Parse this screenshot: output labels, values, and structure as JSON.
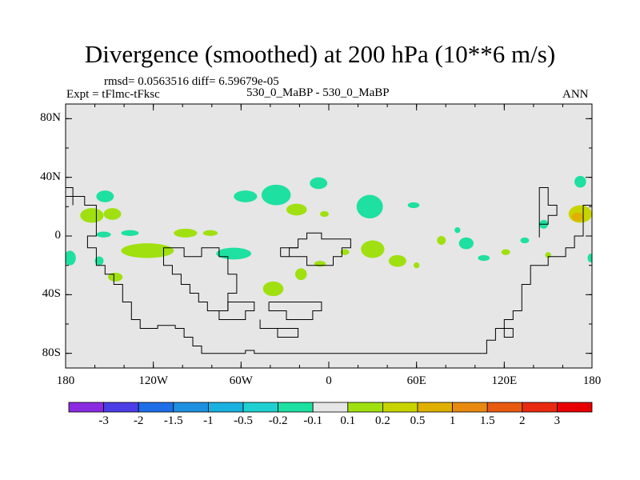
{
  "header": {
    "title": "Divergence (smoothed) at 200 hPa (10**6 m/s)",
    "stats": "rmsd= 0.0563516 diff= 6.59679e-05",
    "expt": "Expt = tFlmc-tFksc",
    "case": "530_0_MaBP - 530_0_MaBP",
    "season": "ANN"
  },
  "chart_data": {
    "type": "heatmap",
    "title": "Divergence (smoothed) at 200 hPa (10**6 m/s)",
    "xlabel": "",
    "ylabel": "",
    "xlim": [
      -180,
      180
    ],
    "ylim": [
      -90,
      90
    ],
    "x_ticks": [
      {
        "value": -180,
        "label": "180"
      },
      {
        "value": -120,
        "label": "120W"
      },
      {
        "value": -60,
        "label": "60W"
      },
      {
        "value": 0,
        "label": "0"
      },
      {
        "value": 60,
        "label": "60E"
      },
      {
        "value": 120,
        "label": "120E"
      },
      {
        "value": 180,
        "label": "180"
      }
    ],
    "y_ticks": [
      {
        "value": 80,
        "label": "80N"
      },
      {
        "value": 40,
        "label": "40N"
      },
      {
        "value": 0,
        "label": "0"
      },
      {
        "value": -40,
        "label": "40S"
      },
      {
        "value": -80,
        "label": "80S"
      }
    ],
    "colorbar": {
      "levels": [
        "-3",
        "-2",
        "-1.5",
        "-1",
        "-0.5",
        "-0.2",
        "-0.1",
        "0.1",
        "0.2",
        "0.5",
        "1",
        "1.5",
        "2",
        "3"
      ],
      "colors": [
        "#8a2be2",
        "#4b3ee6",
        "#1e6ee8",
        "#1e90e0",
        "#1ab0e0",
        "#20d0d0",
        "#1ee0a0",
        "#e6e6e6",
        "#a0e010",
        "#c8d400",
        "#e0b000",
        "#e88a10",
        "#e85a10",
        "#e82a10",
        "#e80000"
      ]
    },
    "background_color": "#e6e6e6",
    "anomaly_patches": [
      {
        "lon": -153,
        "lat": 27,
        "rlon": 6,
        "rlat": 4,
        "cat": "-0.1"
      },
      {
        "lon": -162,
        "lat": 14,
        "rlon": 8,
        "rlat": 5,
        "cat": "0.1"
      },
      {
        "lon": -148,
        "lat": 15,
        "rlon": 6,
        "rlat": 4,
        "cat": "0.1"
      },
      {
        "lon": -154,
        "lat": 1,
        "rlon": 5,
        "rlat": 2,
        "cat": "-0.1"
      },
      {
        "lon": -136,
        "lat": 2,
        "rlon": 6,
        "rlat": 2,
        "cat": "-0.1"
      },
      {
        "lon": -177,
        "lat": -15,
        "rlon": 4,
        "rlat": 5,
        "cat": "-0.1"
      },
      {
        "lon": -124,
        "lat": -10,
        "rlon": 18,
        "rlat": 5,
        "cat": "0.1"
      },
      {
        "lon": -157,
        "lat": -17,
        "rlon": 3,
        "rlat": 3,
        "cat": "-0.1"
      },
      {
        "lon": -146,
        "lat": -28,
        "rlon": 5,
        "rlat": 3,
        "cat": "0.1"
      },
      {
        "lon": -98,
        "lat": 2,
        "rlon": 8,
        "rlat": 3,
        "cat": "0.1"
      },
      {
        "lon": -81,
        "lat": 2,
        "rlon": 5,
        "rlat": 2,
        "cat": "0.1"
      },
      {
        "lon": -65,
        "lat": -12,
        "rlon": 12,
        "rlat": 4,
        "cat": "-0.1"
      },
      {
        "lon": -57,
        "lat": 27,
        "rlon": 8,
        "rlat": 4,
        "cat": "-0.1"
      },
      {
        "lon": -36,
        "lat": 28,
        "rlon": 10,
        "rlat": 7,
        "cat": "-0.1"
      },
      {
        "lon": -7,
        "lat": 36,
        "rlon": 6,
        "rlat": 4,
        "cat": "-0.1"
      },
      {
        "lon": -22,
        "lat": 18,
        "rlon": 7,
        "rlat": 4,
        "cat": "0.1"
      },
      {
        "lon": -3,
        "lat": 15,
        "rlon": 3,
        "rlat": 2,
        "cat": "0.1"
      },
      {
        "lon": -38,
        "lat": -36,
        "rlon": 7,
        "rlat": 5,
        "cat": "0.1"
      },
      {
        "lon": -19,
        "lat": -26,
        "rlon": 4,
        "rlat": 4,
        "cat": "0.1"
      },
      {
        "lon": -6,
        "lat": -19,
        "rlon": 4,
        "rlat": 2,
        "cat": "0.1"
      },
      {
        "lon": 11,
        "lat": -11,
        "rlon": 3,
        "rlat": 2,
        "cat": "0.1"
      },
      {
        "lon": 28,
        "lat": 20,
        "rlon": 9,
        "rlat": 8,
        "cat": "-0.1"
      },
      {
        "lon": 30,
        "lat": -9,
        "rlon": 8,
        "rlat": 6,
        "cat": "0.1"
      },
      {
        "lon": 47,
        "lat": -17,
        "rlon": 6,
        "rlat": 4,
        "cat": "0.1"
      },
      {
        "lon": 58,
        "lat": 21,
        "rlon": 4,
        "rlat": 2,
        "cat": "-0.1"
      },
      {
        "lon": 60,
        "lat": -20,
        "rlon": 2,
        "rlat": 2,
        "cat": "0.1"
      },
      {
        "lon": 77,
        "lat": -3,
        "rlon": 3,
        "rlat": 3,
        "cat": "0.1"
      },
      {
        "lon": 88,
        "lat": 4,
        "rlon": 2,
        "rlat": 2,
        "cat": "-0.1"
      },
      {
        "lon": 94,
        "lat": -5,
        "rlon": 5,
        "rlat": 4,
        "cat": "-0.1"
      },
      {
        "lon": 106,
        "lat": -15,
        "rlon": 4,
        "rlat": 2,
        "cat": "-0.1"
      },
      {
        "lon": 121,
        "lat": -11,
        "rlon": 3,
        "rlat": 2,
        "cat": "0.1"
      },
      {
        "lon": 134,
        "lat": -3,
        "rlon": 3,
        "rlat": 2,
        "cat": "-0.1"
      },
      {
        "lon": 147,
        "lat": 8,
        "rlon": 3,
        "rlat": 3,
        "cat": "-0.1"
      },
      {
        "lon": 150,
        "lat": -13,
        "rlon": 2,
        "rlat": 2,
        "cat": "0.1"
      },
      {
        "lon": 172,
        "lat": 37,
        "rlon": 4,
        "rlat": 4,
        "cat": "-0.1"
      },
      {
        "lon": 172,
        "lat": 15,
        "rlon": 8,
        "rlat": 6,
        "cat": "0.2"
      },
      {
        "lon": 170,
        "lat": 13,
        "rlon": 4,
        "rlat": 3,
        "cat": "0.5"
      },
      {
        "lon": 179,
        "lat": -15,
        "rlon": 2,
        "rlat": 3,
        "cat": "-0.1"
      }
    ],
    "continent_outlines": [
      [
        [
          -180,
          33
        ],
        [
          -175,
          33
        ],
        [
          -175,
          27
        ],
        [
          -167,
          27
        ],
        [
          -167,
          21
        ],
        [
          -159,
          21
        ],
        [
          -159,
          0
        ],
        [
          -165,
          0
        ],
        [
          -165,
          -8
        ],
        [
          -159,
          -8
        ],
        [
          -159,
          -14
        ],
        [
          -159,
          -20
        ],
        [
          -153,
          -20
        ],
        [
          -153,
          -26
        ],
        [
          -147,
          -26
        ],
        [
          -147,
          -33
        ],
        [
          -141,
          -33
        ],
        [
          -141,
          -45
        ],
        [
          -135,
          -45
        ],
        [
          -135,
          -57
        ],
        [
          -129,
          -57
        ],
        [
          -129,
          -63
        ],
        [
          -123,
          -63
        ],
        [
          -117,
          -63
        ],
        [
          -117,
          -61
        ],
        [
          -105,
          -61
        ],
        [
          -105,
          -63
        ],
        [
          -99,
          -63
        ],
        [
          -99,
          -69
        ],
        [
          -93,
          -69
        ],
        [
          -93,
          -75
        ],
        [
          -87,
          -75
        ],
        [
          -87,
          -80
        ],
        [
          -57,
          -80
        ],
        [
          -57,
          -78
        ],
        [
          -51,
          -78
        ],
        [
          -51,
          -80
        ],
        [
          -11,
          -80
        ],
        [
          9,
          -80
        ],
        [
          108,
          -80
        ],
        [
          108,
          -71
        ],
        [
          114,
          -71
        ],
        [
          114,
          -63
        ],
        [
          120,
          -63
        ],
        [
          120,
          -57
        ],
        [
          126,
          -57
        ],
        [
          126,
          -51
        ],
        [
          132,
          -51
        ],
        [
          132,
          -33
        ],
        [
          138,
          -33
        ],
        [
          138,
          -20
        ],
        [
          150,
          -20
        ],
        [
          150,
          -14
        ],
        [
          162,
          -14
        ],
        [
          162,
          -8
        ],
        [
          168,
          -8
        ],
        [
          168,
          0
        ],
        [
          174,
          0
        ],
        [
          174,
          21
        ],
        [
          180,
          21
        ]
      ],
      [
        [
          -180,
          27
        ],
        [
          -175,
          27
        ],
        [
          -175,
          21
        ]
      ],
      [
        [
          -113,
          -14
        ],
        [
          -113,
          -20
        ],
        [
          -107,
          -20
        ],
        [
          -107,
          -26
        ],
        [
          -101,
          -26
        ],
        [
          -101,
          -33
        ],
        [
          -95,
          -33
        ],
        [
          -95,
          -39
        ],
        [
          -89,
          -39
        ],
        [
          -89,
          -45
        ],
        [
          -83,
          -45
        ],
        [
          -83,
          -51
        ],
        [
          -69,
          -51
        ],
        [
          -69,
          -39
        ],
        [
          -63,
          -39
        ],
        [
          -63,
          -33
        ],
        [
          -63,
          -26
        ],
        [
          -69,
          -26
        ],
        [
          -69,
          -14
        ],
        [
          -75,
          -14
        ],
        [
          -75,
          -8
        ],
        [
          -87,
          -8
        ],
        [
          -87,
          -14
        ],
        [
          -99,
          -14
        ],
        [
          -99,
          -8
        ],
        [
          -113,
          -8
        ],
        [
          -113,
          -14
        ]
      ],
      [
        [
          -33,
          -14
        ],
        [
          -33,
          -8
        ],
        [
          -21,
          -8
        ],
        [
          -21,
          -2
        ],
        [
          -15,
          -2
        ],
        [
          -15,
          2
        ],
        [
          -5,
          2
        ],
        [
          -5,
          -2
        ],
        [
          15,
          -2
        ],
        [
          15,
          -8
        ],
        [
          9,
          -8
        ],
        [
          9,
          -14
        ],
        [
          3,
          -14
        ],
        [
          3,
          -20
        ],
        [
          -15,
          -20
        ],
        [
          -15,
          -14
        ],
        [
          -27,
          -14
        ],
        [
          -33,
          -14
        ]
      ],
      [
        [
          -27,
          -14
        ],
        [
          -27,
          -8
        ],
        [
          -21,
          -8
        ]
      ],
      [
        [
          -75,
          -51
        ],
        [
          -75,
          -57
        ],
        [
          -57,
          -57
        ],
        [
          -57,
          -51
        ],
        [
          -51,
          -51
        ],
        [
          -51,
          -45
        ],
        [
          -69,
          -45
        ],
        [
          -69,
          -51
        ]
      ],
      [
        [
          -41,
          -45
        ],
        [
          -41,
          -51
        ],
        [
          -29,
          -51
        ],
        [
          -29,
          -57
        ],
        [
          -11,
          -57
        ],
        [
          -11,
          -51
        ],
        [
          -5,
          -51
        ],
        [
          -5,
          -45
        ],
        [
          -41,
          -45
        ]
      ],
      [
        [
          -47,
          -57
        ],
        [
          -47,
          -63
        ],
        [
          -21,
          -63
        ],
        [
          -21,
          -69
        ],
        [
          -35,
          -69
        ],
        [
          -35,
          -63
        ],
        [
          -47,
          -63
        ]
      ],
      [
        [
          120,
          -63
        ],
        [
          126,
          -63
        ],
        [
          126,
          -69
        ],
        [
          120,
          -69
        ],
        [
          120,
          -63
        ]
      ],
      [
        [
          144,
          -1
        ],
        [
          144,
          8
        ],
        [
          150,
          8
        ],
        [
          150,
          14
        ],
        [
          156,
          14
        ],
        [
          156,
          21
        ],
        [
          150,
          21
        ],
        [
          150,
          33
        ],
        [
          144,
          33
        ],
        [
          144,
          -1
        ]
      ]
    ]
  }
}
